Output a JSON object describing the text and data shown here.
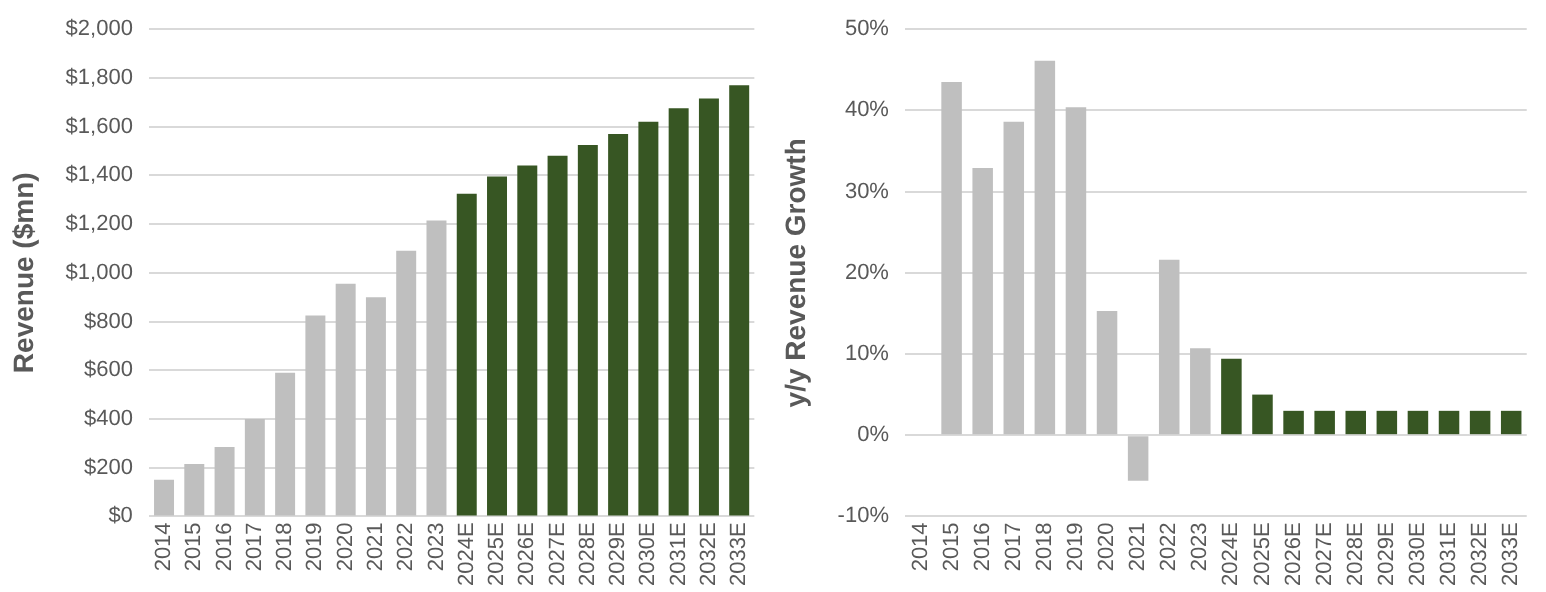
{
  "chart_data": [
    {
      "type": "bar",
      "ylabel": "Revenue ($mn)",
      "categories": [
        "2014",
        "2015",
        "2016",
        "2017",
        "2018",
        "2019",
        "2020",
        "2021",
        "2022",
        "2023",
        "2024E",
        "2025E",
        "2026E",
        "2027E",
        "2028E",
        "2029E",
        "2030E",
        "2031E",
        "2032E",
        "2033E"
      ],
      "values": [
        150,
        215,
        285,
        400,
        590,
        825,
        955,
        900,
        1090,
        1215,
        1325,
        1395,
        1440,
        1480,
        1525,
        1570,
        1620,
        1675,
        1715,
        1770
      ],
      "colors": [
        "#bfbfbf",
        "#bfbfbf",
        "#bfbfbf",
        "#bfbfbf",
        "#bfbfbf",
        "#bfbfbf",
        "#bfbfbf",
        "#bfbfbf",
        "#bfbfbf",
        "#bfbfbf",
        "#375623",
        "#375623",
        "#375623",
        "#375623",
        "#375623",
        "#375623",
        "#375623",
        "#375623",
        "#375623",
        "#375623"
      ],
      "ylim": [
        0,
        2000
      ],
      "yticks": [
        {
          "value": 0,
          "label": "$0"
        },
        {
          "value": 200,
          "label": "$200"
        },
        {
          "value": 400,
          "label": "$400"
        },
        {
          "value": 600,
          "label": "$600"
        },
        {
          "value": 800,
          "label": "$800"
        },
        {
          "value": 1000,
          "label": "$1,000"
        },
        {
          "value": 1200,
          "label": "$1,200"
        },
        {
          "value": 1400,
          "label": "$1,400"
        },
        {
          "value": 1600,
          "label": "$1,600"
        },
        {
          "value": 1800,
          "label": "$1,800"
        },
        {
          "value": 2000,
          "label": "$2,000"
        }
      ],
      "grid": "y",
      "legend": false
    },
    {
      "type": "bar",
      "ylabel": "y/y Revenue Growth",
      "categories": [
        "2014",
        "2015",
        "2016",
        "2017",
        "2018",
        "2019",
        "2020",
        "2021",
        "2022",
        "2023",
        "2024E",
        "2025E",
        "2026E",
        "2027E",
        "2028E",
        "2029E",
        "2030E",
        "2031E",
        "2032E",
        "2033E"
      ],
      "values": [
        null,
        43.5,
        32.9,
        38.6,
        46.1,
        40.4,
        15.3,
        -5.6,
        21.6,
        10.7,
        9.4,
        5.0,
        3.0,
        3.0,
        3.0,
        3.0,
        3.0,
        3.0,
        3.0,
        3.0
      ],
      "colors": [
        "#bfbfbf",
        "#bfbfbf",
        "#bfbfbf",
        "#bfbfbf",
        "#bfbfbf",
        "#bfbfbf",
        "#bfbfbf",
        "#bfbfbf",
        "#bfbfbf",
        "#bfbfbf",
        "#375623",
        "#375623",
        "#375623",
        "#375623",
        "#375623",
        "#375623",
        "#375623",
        "#375623",
        "#375623",
        "#375623"
      ],
      "ylim": [
        -10,
        50
      ],
      "yticks": [
        {
          "value": -10,
          "label": "-10%"
        },
        {
          "value": 0,
          "label": "0%"
        },
        {
          "value": 10,
          "label": "10%"
        },
        {
          "value": 20,
          "label": "20%"
        },
        {
          "value": 30,
          "label": "30%"
        },
        {
          "value": 40,
          "label": "40%"
        },
        {
          "value": 50,
          "label": "50%"
        }
      ],
      "grid": "y",
      "legend": false
    }
  ]
}
